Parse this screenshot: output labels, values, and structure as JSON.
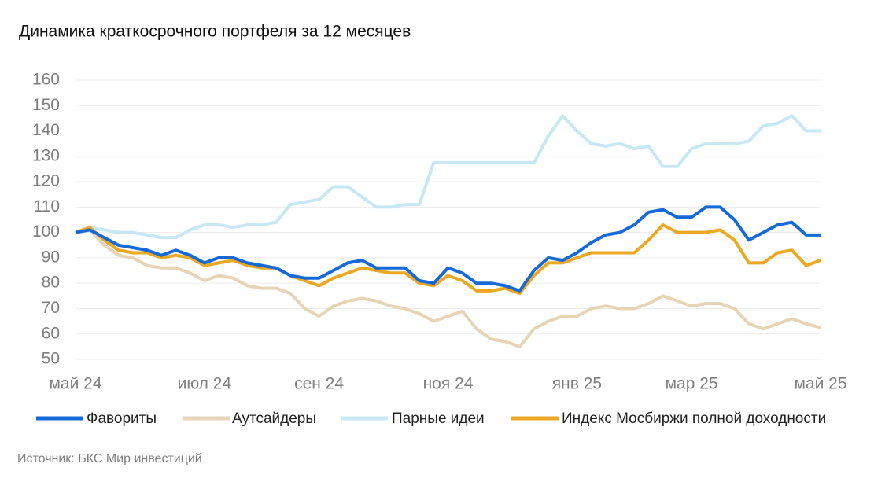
{
  "chart_data": {
    "type": "line",
    "title": "Динамика краткосрочного портфеля за 12 месяцев",
    "source": "Источник: БКС Мир инвестиций",
    "categories": [
      "май 24",
      null,
      null,
      null,
      null,
      null,
      null,
      null,
      null,
      "июл 24",
      null,
      null,
      null,
      null,
      null,
      null,
      null,
      "сен 24",
      null,
      null,
      null,
      null,
      null,
      null,
      null,
      null,
      "ноя 24",
      null,
      null,
      null,
      null,
      null,
      null,
      null,
      null,
      "янв 25",
      null,
      null,
      null,
      null,
      null,
      null,
      null,
      "мар 25",
      null,
      null,
      null,
      null,
      null,
      null,
      null,
      null,
      "май 25"
    ],
    "series": [
      {
        "name": "Фавориты",
        "color": "#1669d9",
        "values": [
          100,
          101,
          98,
          95,
          94,
          93,
          91,
          93,
          91,
          88,
          90,
          90,
          88,
          87,
          86,
          83,
          82,
          82,
          85,
          88,
          89,
          86,
          86,
          86,
          81,
          80,
          86,
          84,
          80,
          80,
          79,
          77,
          85,
          90,
          89,
          92,
          96,
          99,
          100,
          103,
          108,
          109,
          106,
          106,
          110,
          110,
          105,
          97,
          100,
          103,
          104,
          99,
          99
        ]
      },
      {
        "name": "Аутсайдеры",
        "color": "#e5d5b6",
        "values": [
          100,
          101,
          95,
          91,
          90,
          87,
          86,
          86,
          84,
          81,
          83,
          82,
          79,
          78,
          78,
          76,
          70,
          67,
          71,
          73,
          74,
          73,
          71,
          70,
          68,
          65,
          67,
          69,
          62,
          58,
          57,
          55,
          62,
          65,
          67,
          67,
          70,
          71,
          70,
          70,
          72,
          75,
          73,
          71,
          72,
          72,
          70,
          64,
          62,
          64,
          66,
          64,
          62.5
        ]
      },
      {
        "name": "Парные идеи",
        "color": "#c7e8f3",
        "values": [
          100,
          102,
          101,
          100,
          100,
          99,
          98,
          98,
          101,
          103,
          103,
          102,
          103,
          103,
          104,
          111,
          112,
          113,
          118,
          118,
          114,
          110,
          110,
          111,
          111,
          127.5,
          127.5,
          127.5,
          127.5,
          127.5,
          127.5,
          127.5,
          127.5,
          138,
          146,
          140,
          135,
          134,
          135,
          133,
          134,
          126,
          126,
          133,
          135,
          135,
          135,
          136,
          142,
          143,
          146,
          140,
          140
        ]
      },
      {
        "name": "Индекс Мосбиржи полной доходности",
        "color": "#eda823",
        "values": [
          100,
          102,
          97,
          93,
          92,
          92,
          90,
          91,
          90,
          87,
          88,
          89,
          87,
          86,
          86,
          83,
          81,
          79,
          82,
          84,
          86,
          85,
          84,
          84,
          80,
          79,
          83,
          81,
          77,
          77,
          78,
          76,
          83,
          88,
          88,
          90,
          92,
          92,
          92,
          92,
          97,
          103,
          100,
          100,
          100,
          101,
          97,
          88,
          88,
          92,
          93,
          87,
          89
        ]
      }
    ],
    "ylim": [
      50,
      160
    ],
    "yticks": [
      50,
      60,
      70,
      80,
      90,
      100,
      110,
      120,
      130,
      140,
      150,
      160
    ],
    "grid": true
  }
}
